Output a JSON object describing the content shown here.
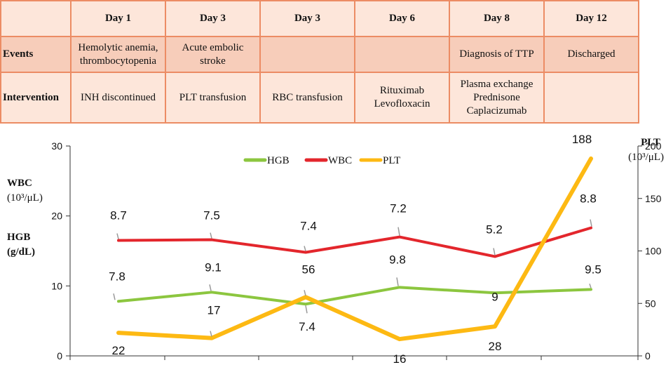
{
  "timeline": {
    "corner": "",
    "days": [
      "Day 1",
      "Day 3",
      "Day 3",
      "Day 6",
      "Day 8",
      "Day 12"
    ],
    "rows": [
      {
        "label": "Events",
        "cells": [
          "Hemolytic anemia,\nthrombocytopenia",
          "Acute embolic\nstroke",
          "",
          "",
          "Diagnosis of TTP",
          "Discharged"
        ]
      },
      {
        "label": "Intervention",
        "cells": [
          "INH discontinued",
          "PLT transfusion",
          "RBC transfusion",
          "Rituximab\nLevofloxacin",
          "Plasma exchange\nPrednisone\nCaplacizumab",
          ""
        ]
      }
    ],
    "colors": {
      "border": "#ec8c64",
      "header_bg": "#fde6da",
      "events_bg": "#f7cdba",
      "intervention_bg": "#fde6da"
    }
  },
  "chart_data": {
    "type": "line",
    "categories": [
      "",
      "",
      "",
      "",
      "",
      ""
    ],
    "series": [
      {
        "name": "HGB",
        "axis": "left",
        "color": "#8cc63f",
        "values": [
          7.8,
          9.1,
          7.4,
          9.8,
          9,
          9.5
        ],
        "labels": [
          "7.8",
          "9.1",
          "7.4",
          "9.8",
          "9",
          "9.5"
        ]
      },
      {
        "name": "WBC",
        "axis": "left",
        "color": "#e3262c",
        "values": [
          8.7,
          7.5,
          7.4,
          7.2,
          5.2,
          8.8
        ],
        "display_values": [
          16.5,
          16.6,
          14.8,
          17.0,
          14.2,
          18.3
        ],
        "labels": [
          "8.7",
          "7.5",
          "7.4",
          "7.2",
          "5.2",
          "8.8"
        ]
      },
      {
        "name": "PLT",
        "axis": "right",
        "color": "#fdb913",
        "values": [
          22,
          17,
          56,
          16,
          28,
          188
        ],
        "labels": [
          "22",
          "17",
          "56",
          "16",
          "28",
          "188"
        ]
      }
    ],
    "left_axis": {
      "ylim": [
        0,
        30
      ],
      "ticks": [
        "0",
        "10",
        "20",
        "30"
      ],
      "labels": [
        {
          "title": "WBC",
          "unit": "(10³/μL)"
        },
        {
          "title": "HGB",
          "unit": "(g/dL)"
        }
      ]
    },
    "right_axis": {
      "ylim": [
        0,
        200
      ],
      "ticks": [
        "0",
        "50",
        "100",
        "150",
        "200"
      ],
      "title": "PLT",
      "unit": "(10³/μL)"
    },
    "legend": {
      "placement": "top-center",
      "entries": [
        "HGB",
        "WBC",
        "PLT"
      ]
    },
    "grid": false
  }
}
